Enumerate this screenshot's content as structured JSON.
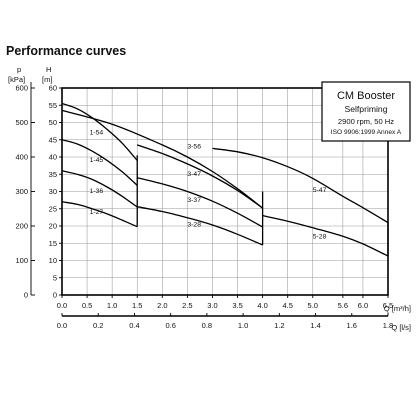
{
  "heading": "Performance curves",
  "chart_data": {
    "type": "line",
    "title": "CM Booster",
    "subtitle_lines": [
      "Selfpriming",
      "2900 rpm, 50 Hz",
      "ISO 9906:1999 Annex A"
    ],
    "x_primary": {
      "label": "Q [m³/h]",
      "range": [
        0,
        6.5
      ],
      "ticks": [
        0.0,
        0.5,
        1.0,
        1.5,
        2.0,
        2.5,
        3.0,
        3.5,
        4.0,
        4.5,
        5.0,
        5.6,
        6.0,
        6.5
      ],
      "tick_labels": [
        "0.0",
        "0.5",
        "1.0",
        "1.5",
        "2.0",
        "2.5",
        "3.0",
        "3.5",
        "4.0",
        "4.5",
        "5.0",
        "5.6",
        "6.0",
        "6.5"
      ]
    },
    "x_secondary": {
      "label": "Q [l/s]",
      "range": [
        0,
        1.8
      ],
      "ticks": [
        0.0,
        0.2,
        0.4,
        0.6,
        0.8,
        1.0,
        1.2,
        1.4,
        1.6,
        1.8
      ],
      "tick_labels": [
        "0.0",
        "0.2",
        "0.4",
        "0.6",
        "0.8",
        "1.0",
        "1.2",
        "1.4",
        "1.6",
        "1.8"
      ]
    },
    "y_left": {
      "unit_top": "p",
      "label": "[kPa]",
      "range": [
        0,
        600
      ],
      "ticks": [
        0,
        100,
        200,
        300,
        400,
        500,
        600
      ],
      "tick_labels": [
        "0",
        "100",
        "200",
        "300",
        "400",
        "500",
        "600"
      ]
    },
    "y_right": {
      "unit_top": "H",
      "label": "[m]",
      "range": [
        0,
        60
      ],
      "ticks": [
        0,
        5,
        10,
        15,
        20,
        25,
        30,
        35,
        40,
        45,
        50,
        55,
        60
      ],
      "tick_labels": [
        "0",
        "5",
        "10",
        "15",
        "20",
        "25",
        "30",
        "35",
        "40",
        "45",
        "50",
        "55",
        "60"
      ]
    },
    "grid": true,
    "series": [
      {
        "name": "1-27",
        "x": [
          0,
          0.3,
          0.6,
          0.9,
          1.2,
          1.5
        ],
        "y": [
          27,
          26.3,
          25,
          23.5,
          21.7,
          19.8
        ]
      },
      {
        "name": "1-36",
        "x": [
          0,
          0.3,
          0.6,
          0.9,
          1.2,
          1.5
        ],
        "y": [
          36,
          35,
          33.5,
          31.3,
          28.6,
          25.5
        ]
      },
      {
        "name": "1-45",
        "x": [
          0,
          0.3,
          0.6,
          0.9,
          1.2,
          1.5
        ],
        "y": [
          45,
          43.8,
          41.7,
          39,
          35.7,
          31.8
        ]
      },
      {
        "name": "1-54",
        "x": [
          0,
          0.3,
          0.6,
          0.9,
          1.2,
          1.5
        ],
        "y": [
          55.5,
          54,
          51.4,
          48,
          44,
          39
        ]
      },
      {
        "name": "3-28",
        "x": [
          1.5,
          2.0,
          2.5,
          3.0,
          3.5,
          4.0
        ],
        "y": [
          25.6,
          24.2,
          22.4,
          20.3,
          17.6,
          14.5
        ]
      },
      {
        "name": "3-37",
        "x": [
          1.5,
          2.0,
          2.5,
          3.0,
          3.5,
          4.0
        ],
        "y": [
          34,
          32.2,
          30,
          27.2,
          23.7,
          19.7
        ]
      },
      {
        "name": "3-47",
        "x": [
          1.5,
          2.0,
          2.5,
          3.0,
          3.5,
          4.0
        ],
        "y": [
          43.5,
          41,
          38,
          34.5,
          30.3,
          25.2
        ]
      },
      {
        "name": "3-56",
        "x": [
          0,
          1.0,
          2.0,
          2.5,
          3.0,
          3.5,
          4.0
        ],
        "y": [
          53.5,
          49.5,
          43.5,
          40,
          35.8,
          30.8,
          25.2
        ]
      },
      {
        "name": "5-28",
        "x": [
          4.0,
          4.5,
          5.0,
          5.6,
          6.0,
          6.5
        ],
        "y": [
          23,
          21.4,
          19.5,
          17,
          14.8,
          11.3
        ]
      },
      {
        "name": "5-47",
        "x": [
          3.0,
          3.5,
          4.0,
          4.5,
          5.0,
          5.6,
          6.0,
          6.5
        ],
        "y": [
          42.5,
          41.5,
          39.8,
          37.2,
          33.8,
          28.6,
          25.3,
          21
        ]
      }
    ],
    "drops": [
      {
        "x": 1.5,
        "from": 40.5,
        "to": 19.8
      },
      {
        "x": 4.0,
        "from": 30,
        "to": 14.5
      },
      {
        "x": 6.5,
        "from": 21,
        "to": 11.3
      }
    ]
  }
}
